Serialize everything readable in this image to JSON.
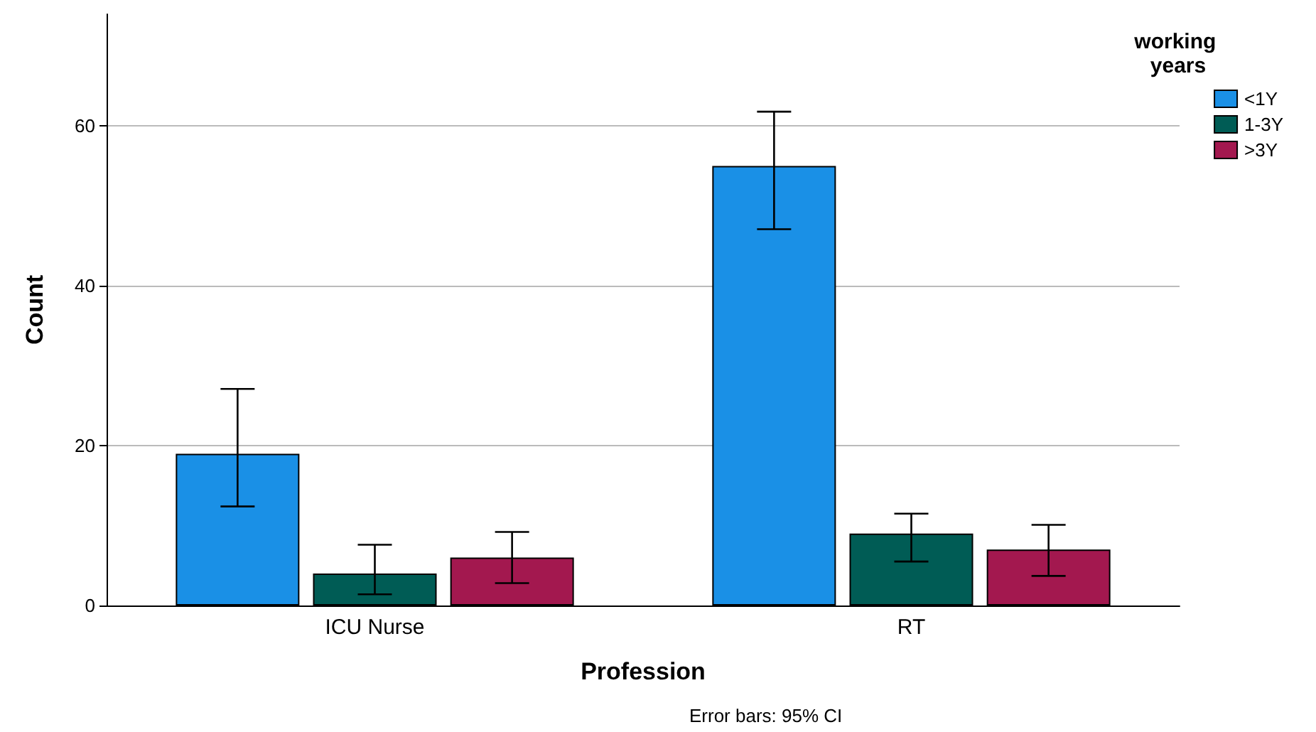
{
  "chart_data": {
    "type": "bar",
    "categories": [
      "ICU Nurse",
      "RT"
    ],
    "xlabel": "Profession",
    "ylabel": "Count",
    "legend_title": "working years",
    "series": [
      {
        "name": "<1Y",
        "color": "#1a90e6",
        "values": [
          19,
          55
        ],
        "errors": [
          [
            12.4,
            27.1
          ],
          [
            47.1,
            61.8
          ]
        ]
      },
      {
        "name": "1-3Y",
        "color": "#005c55",
        "values": [
          4,
          9
        ],
        "errors": [
          [
            1.4,
            7.6
          ],
          [
            5.5,
            11.5
          ]
        ]
      },
      {
        "name": ">3Y",
        "color": "#a3184f",
        "values": [
          6,
          7
        ],
        "errors": [
          [
            2.8,
            9.2
          ],
          [
            3.7,
            10.1
          ]
        ]
      }
    ],
    "ylim": [
      0,
      74
    ],
    "yticks": [
      0,
      20,
      40,
      60
    ],
    "grid": "y",
    "legend": "top right",
    "annotations": [
      "Error bars: 95% CI"
    ]
  }
}
